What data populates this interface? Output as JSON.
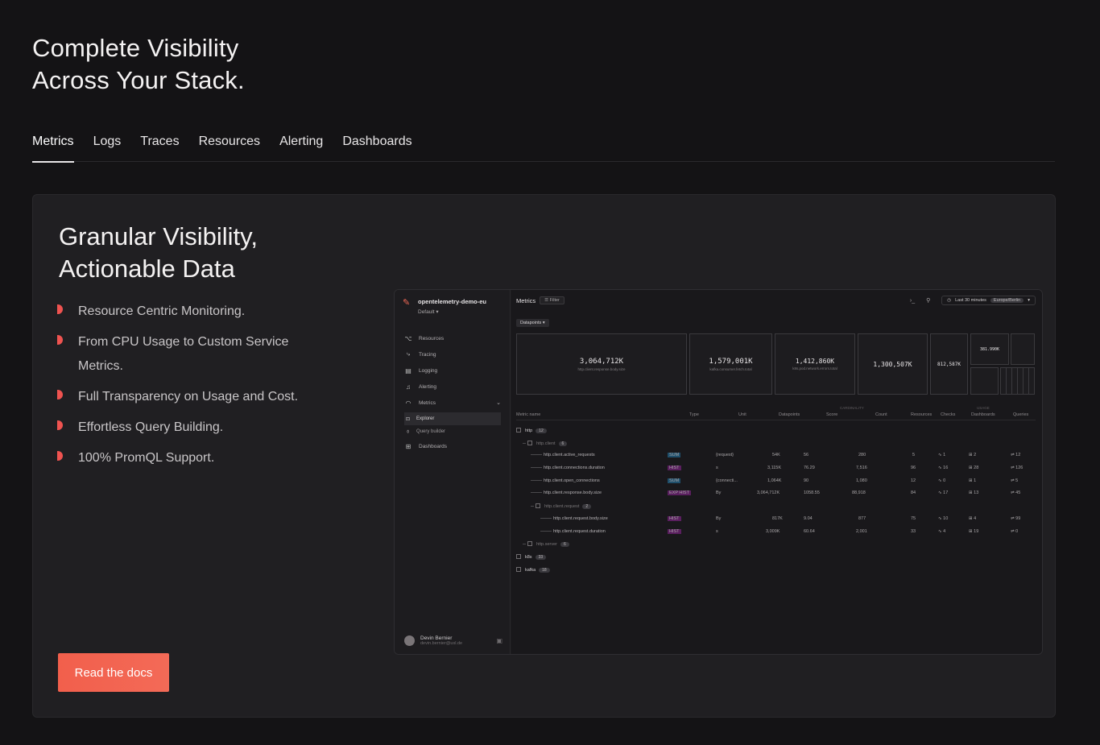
{
  "hero": {
    "line1": "Complete Visibility",
    "line2": "Across Your Stack."
  },
  "tabs": [
    "Metrics",
    "Logs",
    "Traces",
    "Resources",
    "Alerting",
    "Dashboards"
  ],
  "card": {
    "title_line1": "Granular Visibility,",
    "title_line2": "Actionable Data",
    "features": [
      "Resource Centric Monitoring.",
      "From CPU Usage to Custom Service Metrics.",
      "Full Transparency on Usage and Cost.",
      "Effortless Query Building.",
      "100% PromQL Support."
    ],
    "cta": "Read the docs"
  },
  "app": {
    "org_name": "opentelemetry-demo-eu",
    "org_env": "Default ▾",
    "nav": [
      "Resources",
      "Tracing",
      "Logging",
      "Alerting",
      "Metrics"
    ],
    "subnav": [
      "Explorer",
      "Query builder"
    ],
    "nav_dashboards": "Dashboards",
    "user_name": "Devin Bernier",
    "user_email": "devin.bernier@usl.de",
    "toolbar_title": "Metrics",
    "filter": "Filter",
    "time_range": "Last 30 minutes",
    "timezone": "Europe/Berlin",
    "dp_select": "Datapoints ▾",
    "treemap": [
      {
        "value": "3,064,712K",
        "label": "http.client.response.body.size"
      },
      {
        "value": "1,579,001K",
        "label": "kafka.consumer.fetch.total"
      },
      {
        "value": "1,412,860K",
        "label": "k8s.pod.network.errors.total"
      },
      {
        "value": "1,300,507K",
        "label": ""
      },
      {
        "value": "812,587K",
        "label": ""
      },
      {
        "value": "381.990K",
        "label": ""
      }
    ],
    "headers": {
      "name": "Metric name",
      "type": "Type",
      "unit": "Unit",
      "datapoints": "Datapoints",
      "score": "Score",
      "count": "Count",
      "resources": "Resources",
      "checks": "Checks",
      "dashboards": "Dashboards",
      "queries": "Queries",
      "cardinality": "CARDINALITY",
      "usage": "USAGE"
    },
    "rows": [
      {
        "name": "http",
        "count": "12",
        "kind": "group"
      },
      {
        "name": "http.client",
        "count": "6",
        "kind": "group2"
      },
      {
        "name": "http.client.active_requests",
        "type": "SUM",
        "unit": "{request}",
        "dp": "54K",
        "score": "56",
        "cnt": "280",
        "res": "5",
        "checks": "∿ 1",
        "dash": "⊞ 2",
        "q": "⇌ 12",
        "kind": "leaf"
      },
      {
        "name": "http.client.connections.duration",
        "type": "HIST",
        "unit": "s",
        "dp": "3,115K",
        "score": "76.29",
        "cnt": "7,516",
        "res": "96",
        "checks": "∿ 16",
        "dash": "⊞ 28",
        "q": "⇌ 126",
        "kind": "leaf"
      },
      {
        "name": "http.client.open_connections",
        "type": "SUM",
        "unit": "{connecti...",
        "dp": "1,064K",
        "score": "90",
        "cnt": "1,080",
        "res": "12",
        "checks": "∿ 0",
        "dash": "⊞ 1",
        "q": "⇌ 5",
        "kind": "leaf"
      },
      {
        "name": "http.client.response.body.size",
        "type": "EXP HIST",
        "unit": "By",
        "dp": "3,064,712K",
        "score": "1058.55",
        "cnt": "88,918",
        "res": "84",
        "checks": "∿ 17",
        "dash": "⊞ 13",
        "q": "⇌ 45",
        "kind": "leaf"
      },
      {
        "name": "http.client.request",
        "count": "2",
        "kind": "group3"
      },
      {
        "name": "http.client.request.body.size",
        "type": "HIST",
        "unit": "By",
        "dp": "817K",
        "score": "9.04",
        "cnt": "877",
        "res": "75",
        "checks": "∿ 10",
        "dash": "⊞ 4",
        "q": "⇌ 99",
        "kind": "leaf2"
      },
      {
        "name": "http.client.request.duration",
        "type": "HIST",
        "unit": "s",
        "dp": "3,009K",
        "score": "60.64",
        "cnt": "2,001",
        "res": "33",
        "checks": "∿ 4",
        "dash": "⊞ 19",
        "q": "⇌ 0",
        "kind": "leaf2"
      },
      {
        "name": "http.server",
        "count": "6",
        "kind": "group2c"
      },
      {
        "name": "k8s",
        "count": "33",
        "kind": "groupc"
      },
      {
        "name": "kafka",
        "count": "18",
        "kind": "groupc"
      }
    ]
  },
  "colors": {
    "accent": "#f36a57",
    "bullet": "#ef5350",
    "bg": "#141315",
    "card": "#201f22"
  }
}
